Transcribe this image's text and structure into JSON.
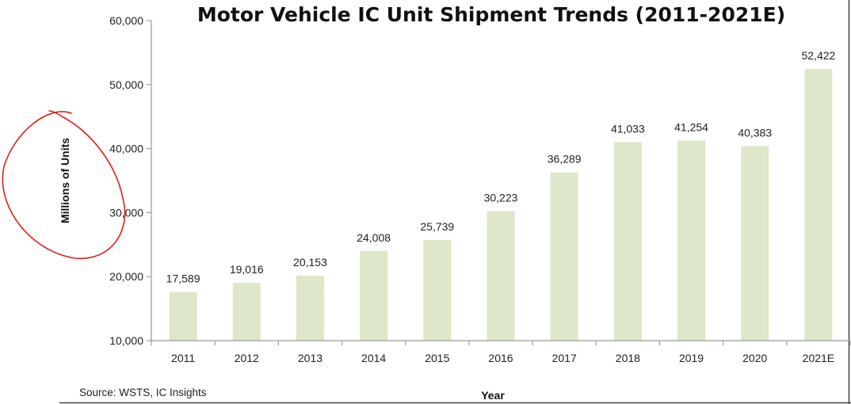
{
  "chart_data": {
    "type": "bar",
    "title": "Motor Vehicle IC Unit Shipment Trends (2011-2021E)",
    "xlabel": "Year",
    "ylabel": "Millions of Units",
    "categories": [
      "2011",
      "2012",
      "2013",
      "2014",
      "2015",
      "2016",
      "2017",
      "2018",
      "2019",
      "2020",
      "2021E"
    ],
    "values": [
      17589,
      19016,
      20153,
      24008,
      25739,
      30223,
      36289,
      41033,
      41254,
      40383,
      52422
    ],
    "value_labels": [
      "17,589",
      "19,016",
      "20,153",
      "24,008",
      "25,739",
      "30,223",
      "36,289",
      "41,033",
      "41,254",
      "40,383",
      "52,422"
    ],
    "ylim": [
      10000,
      60000
    ],
    "yticks": [
      10000,
      20000,
      30000,
      40000,
      50000,
      60000
    ],
    "ytick_labels": [
      "10,000",
      "20,000",
      "30,000",
      "40,000",
      "50,000",
      "60,000"
    ],
    "grid": false,
    "legend": "none",
    "source": "Source: WSTS,  IC Insights",
    "colors": {
      "bar": "#dde7c9",
      "axis": "#9a9a9a",
      "text": "#222222",
      "annotation": "#e0201a"
    }
  }
}
